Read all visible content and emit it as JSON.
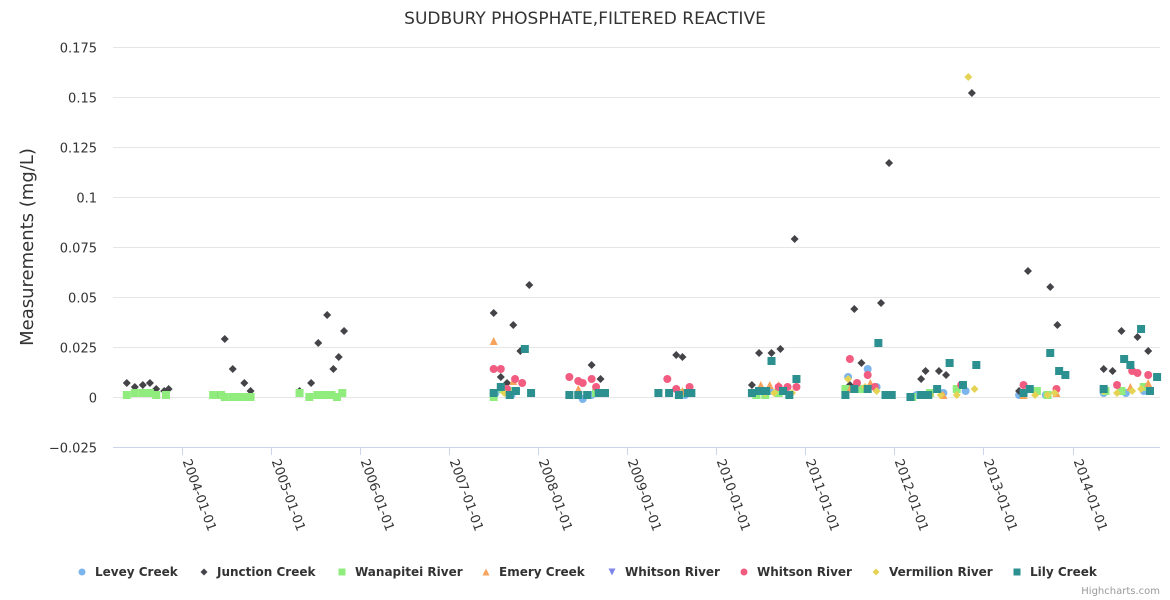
{
  "chart_data": {
    "type": "scatter",
    "title": "SUDBURY PHOSPHATE,FILTERED REACTIVE",
    "xlabel": "",
    "ylabel": "Measurements (mg/L)",
    "ylim": [
      -0.025,
      0.175
    ],
    "xlim": [
      2003.25,
      2015.0
    ],
    "yticks": [
      -0.025,
      0,
      0.025,
      0.05,
      0.075,
      0.1,
      0.125,
      0.15,
      0.175
    ],
    "ytick_labels": [
      "−0.025",
      "0",
      "0.025",
      "0.05",
      "0.075",
      "0.1",
      "0.125",
      "0.15",
      "0.175"
    ],
    "xticks": [
      2004,
      2005,
      2006,
      2007,
      2008,
      2009,
      2010,
      2011,
      2012,
      2013,
      2014
    ],
    "xtick_labels": [
      "2004-01-01",
      "2005-01-01",
      "2006-01-01",
      "2007-01-01",
      "2008-01-01",
      "2009-01-01",
      "2010-01-01",
      "2011-01-01",
      "2012-01-01",
      "2013-01-01",
      "2014-01-01"
    ],
    "grid": true,
    "legend_position": "bottom",
    "credits": "Highcharts.com",
    "series": [
      {
        "name": "Levey Creek",
        "color": "#7cb5ec",
        "marker": "circle",
        "points": [
          [
            2007.52,
            0.002
          ],
          [
            2007.7,
            0.001
          ],
          [
            2008.5,
            -0.001
          ],
          [
            2008.6,
            0.001
          ],
          [
            2009.35,
            0.002
          ],
          [
            2009.65,
            0.001
          ],
          [
            2010.45,
            0.002
          ],
          [
            2010.6,
            0.003
          ],
          [
            2011.48,
            0.01
          ],
          [
            2011.7,
            0.014
          ],
          [
            2011.8,
            0.005
          ],
          [
            2012.25,
            0.001
          ],
          [
            2012.55,
            0.002
          ],
          [
            2012.8,
            0.003
          ],
          [
            2013.4,
            0.001
          ],
          [
            2013.7,
            0.001
          ],
          [
            2014.35,
            0.002
          ],
          [
            2014.6,
            0.002
          ],
          [
            2014.8,
            0.003
          ]
        ]
      },
      {
        "name": "Junction Creek",
        "color": "#434348",
        "marker": "diamond",
        "points": [
          [
            2003.38,
            0.007
          ],
          [
            2003.47,
            0.005
          ],
          [
            2003.56,
            0.006
          ],
          [
            2003.64,
            0.007
          ],
          [
            2003.71,
            0.004
          ],
          [
            2003.8,
            0.003
          ],
          [
            2003.85,
            0.004
          ],
          [
            2004.38,
            0.001
          ],
          [
            2004.48,
            0.029
          ],
          [
            2004.57,
            0.014
          ],
          [
            2004.7,
            0.007
          ],
          [
            2004.77,
            0.003
          ],
          [
            2005.32,
            0.003
          ],
          [
            2005.45,
            0.007
          ],
          [
            2005.53,
            0.027
          ],
          [
            2005.63,
            0.041
          ],
          [
            2005.7,
            0.014
          ],
          [
            2005.76,
            0.02
          ],
          [
            2005.82,
            0.033
          ],
          [
            2007.5,
            0.042
          ],
          [
            2007.58,
            0.01
          ],
          [
            2007.65,
            0.007
          ],
          [
            2007.72,
            0.036
          ],
          [
            2007.8,
            0.023
          ],
          [
            2007.9,
            0.056
          ],
          [
            2008.6,
            0.016
          ],
          [
            2008.7,
            0.009
          ],
          [
            2009.55,
            0.021
          ],
          [
            2009.62,
            0.02
          ],
          [
            2010.4,
            0.006
          ],
          [
            2010.48,
            0.022
          ],
          [
            2010.62,
            0.022
          ],
          [
            2010.72,
            0.024
          ],
          [
            2010.88,
            0.079
          ],
          [
            2011.5,
            0.006
          ],
          [
            2011.55,
            0.044
          ],
          [
            2011.63,
            0.017
          ],
          [
            2011.85,
            0.047
          ],
          [
            2011.94,
            0.117
          ],
          [
            2012.5,
            0.013
          ],
          [
            2012.58,
            0.011
          ],
          [
            2012.3,
            0.009
          ],
          [
            2012.35,
            0.013
          ],
          [
            2012.87,
            0.152
          ],
          [
            2013.4,
            0.003
          ],
          [
            2013.5,
            0.063
          ],
          [
            2013.75,
            0.055
          ],
          [
            2013.83,
            0.036
          ],
          [
            2014.35,
            0.014
          ],
          [
            2014.45,
            0.013
          ],
          [
            2014.55,
            0.033
          ],
          [
            2014.73,
            0.03
          ],
          [
            2014.85,
            0.023
          ]
        ]
      },
      {
        "name": "Wanapitei River",
        "color": "#90ed7d",
        "marker": "square",
        "points": [
          [
            2003.38,
            0.001
          ],
          [
            2003.47,
            0.002
          ],
          [
            2003.56,
            0.002
          ],
          [
            2003.64,
            0.002
          ],
          [
            2003.71,
            0.001
          ],
          [
            2003.82,
            0.001
          ],
          [
            2004.35,
            0.001
          ],
          [
            2004.44,
            0.001
          ],
          [
            2004.48,
            0.0
          ],
          [
            2004.57,
            0.0
          ],
          [
            2004.64,
            0.0
          ],
          [
            2004.72,
            0.0
          ],
          [
            2004.77,
            0.0
          ],
          [
            2005.32,
            0.002
          ],
          [
            2005.43,
            0.0
          ],
          [
            2005.52,
            0.001
          ],
          [
            2005.6,
            0.001
          ],
          [
            2005.68,
            0.001
          ],
          [
            2005.74,
            0.0
          ],
          [
            2005.8,
            0.002
          ],
          [
            2007.5,
            0.0
          ],
          [
            2007.6,
            0.004
          ],
          [
            2007.72,
            0.003
          ],
          [
            2008.65,
            0.002
          ],
          [
            2009.35,
            0.002
          ],
          [
            2009.6,
            0.002
          ],
          [
            2010.45,
            0.001
          ],
          [
            2010.55,
            0.001
          ],
          [
            2010.7,
            0.002
          ],
          [
            2011.45,
            0.004
          ],
          [
            2011.62,
            0.004
          ],
          [
            2012.2,
            0.0
          ],
          [
            2012.4,
            0.002
          ],
          [
            2012.7,
            0.004
          ],
          [
            2013.6,
            0.003
          ],
          [
            2013.72,
            0.001
          ],
          [
            2014.37,
            0.003
          ],
          [
            2014.55,
            0.003
          ],
          [
            2014.8,
            0.005
          ]
        ]
      },
      {
        "name": "Emery Creek",
        "color": "#f7a35c",
        "marker": "triangle",
        "points": [
          [
            2007.5,
            0.028
          ],
          [
            2007.72,
            0.008
          ],
          [
            2008.45,
            0.004
          ],
          [
            2009.62,
            0.003
          ],
          [
            2010.5,
            0.006
          ],
          [
            2010.6,
            0.006
          ],
          [
            2010.7,
            0.006
          ],
          [
            2011.5,
            0.004
          ],
          [
            2011.73,
            0.007
          ],
          [
            2012.55,
            0.001
          ],
          [
            2013.45,
            0.001
          ],
          [
            2013.82,
            0.002
          ],
          [
            2014.65,
            0.005
          ],
          [
            2014.85,
            0.007
          ]
        ]
      },
      {
        "name": "Whitson River",
        "color": "#8085e9",
        "marker": "triangle-down",
        "points": []
      },
      {
        "name": "Whitson River",
        "color": "#f15c80",
        "marker": "circle",
        "points": [
          [
            2007.5,
            0.014
          ],
          [
            2007.58,
            0.014
          ],
          [
            2007.65,
            0.004
          ],
          [
            2007.74,
            0.009
          ],
          [
            2007.82,
            0.007
          ],
          [
            2008.35,
            0.01
          ],
          [
            2008.45,
            0.008
          ],
          [
            2008.5,
            0.007
          ],
          [
            2008.6,
            0.009
          ],
          [
            2008.65,
            0.005
          ],
          [
            2009.45,
            0.009
          ],
          [
            2009.55,
            0.004
          ],
          [
            2009.7,
            0.005
          ],
          [
            2010.7,
            0.005
          ],
          [
            2010.8,
            0.005
          ],
          [
            2010.9,
            0.005
          ],
          [
            2011.5,
            0.019
          ],
          [
            2011.58,
            0.007
          ],
          [
            2011.7,
            0.011
          ],
          [
            2011.78,
            0.005
          ],
          [
            2012.75,
            0.006
          ],
          [
            2013.45,
            0.006
          ],
          [
            2013.82,
            0.004
          ],
          [
            2014.35,
            0.004
          ],
          [
            2014.5,
            0.006
          ],
          [
            2014.67,
            0.013
          ],
          [
            2014.73,
            0.012
          ],
          [
            2014.85,
            0.011
          ]
        ]
      },
      {
        "name": "Vermilion River",
        "color": "#e4d354",
        "marker": "diamond",
        "points": [
          [
            2007.62,
            0.002
          ],
          [
            2007.75,
            0.003
          ],
          [
            2010.55,
            0.002
          ],
          [
            2010.65,
            0.002
          ],
          [
            2010.85,
            0.002
          ],
          [
            2011.48,
            0.009
          ],
          [
            2011.67,
            0.005
          ],
          [
            2011.8,
            0.003
          ],
          [
            2012.4,
            0.001
          ],
          [
            2012.52,
            0.001
          ],
          [
            2012.7,
            0.001
          ],
          [
            2012.83,
            0.16
          ],
          [
            2012.9,
            0.004
          ],
          [
            2013.58,
            0.001
          ],
          [
            2013.72,
            0.001
          ],
          [
            2013.8,
            0.002
          ],
          [
            2014.35,
            0.003
          ],
          [
            2014.5,
            0.002
          ],
          [
            2014.67,
            0.003
          ],
          [
            2014.77,
            0.004
          ]
        ]
      },
      {
        "name": "Lily Creek",
        "color": "#2b908f",
        "marker": "square",
        "points": [
          [
            2007.5,
            0.002
          ],
          [
            2007.58,
            0.005
          ],
          [
            2007.68,
            0.001
          ],
          [
            2007.75,
            0.003
          ],
          [
            2007.85,
            0.024
          ],
          [
            2007.92,
            0.002
          ],
          [
            2008.35,
            0.001
          ],
          [
            2008.45,
            0.001
          ],
          [
            2008.55,
            0.001
          ],
          [
            2008.68,
            0.002
          ],
          [
            2008.75,
            0.002
          ],
          [
            2009.35,
            0.002
          ],
          [
            2009.47,
            0.002
          ],
          [
            2009.58,
            0.001
          ],
          [
            2009.68,
            0.002
          ],
          [
            2009.72,
            0.002
          ],
          [
            2010.4,
            0.002
          ],
          [
            2010.48,
            0.003
          ],
          [
            2010.56,
            0.003
          ],
          [
            2010.62,
            0.018
          ],
          [
            2010.75,
            0.003
          ],
          [
            2010.82,
            0.001
          ],
          [
            2010.9,
            0.009
          ],
          [
            2011.45,
            0.001
          ],
          [
            2011.55,
            0.004
          ],
          [
            2011.7,
            0.004
          ],
          [
            2011.82,
            0.027
          ],
          [
            2011.9,
            0.001
          ],
          [
            2011.97,
            0.001
          ],
          [
            2012.18,
            0.0
          ],
          [
            2012.3,
            0.001
          ],
          [
            2012.38,
            0.001
          ],
          [
            2012.48,
            0.004
          ],
          [
            2012.62,
            0.017
          ],
          [
            2012.77,
            0.006
          ],
          [
            2012.92,
            0.016
          ],
          [
            2013.45,
            0.002
          ],
          [
            2013.52,
            0.004
          ],
          [
            2013.75,
            0.022
          ],
          [
            2013.85,
            0.013
          ],
          [
            2013.92,
            0.011
          ],
          [
            2014.35,
            0.004
          ],
          [
            2014.58,
            0.019
          ],
          [
            2014.65,
            0.016
          ],
          [
            2014.77,
            0.034
          ],
          [
            2014.87,
            0.003
          ],
          [
            2014.95,
            0.01
          ]
        ]
      }
    ]
  }
}
